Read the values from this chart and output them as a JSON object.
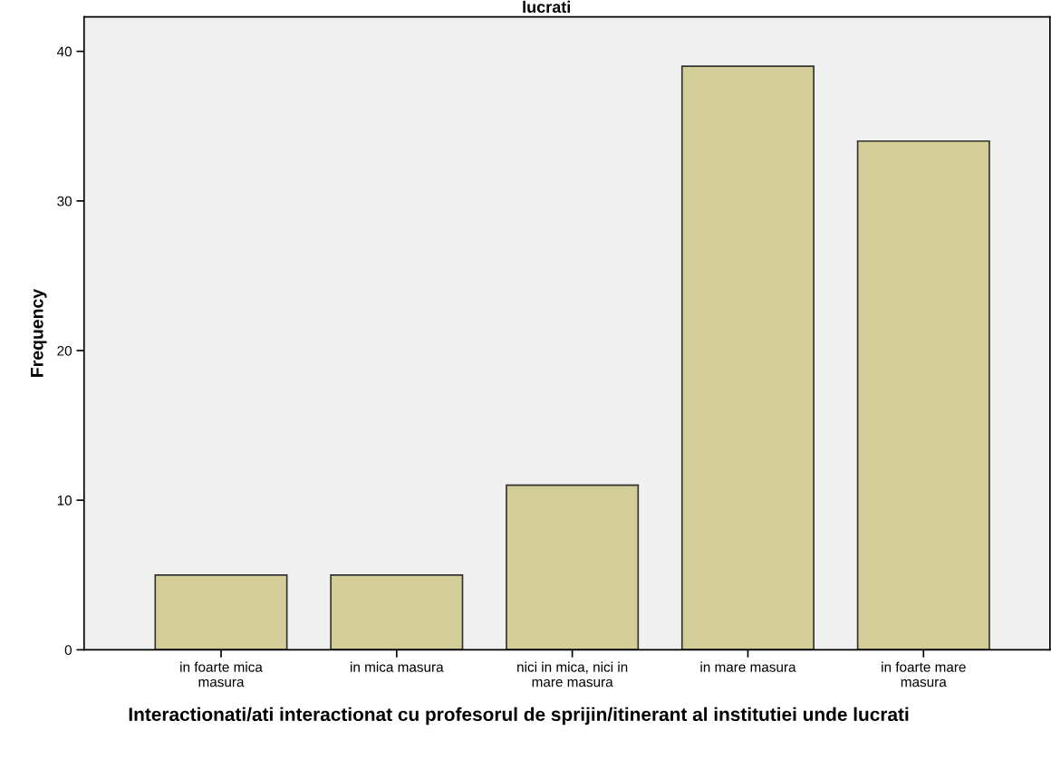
{
  "chart_data": {
    "type": "bar",
    "title": "lucrati",
    "xlabel": "Interactionati/ati interactionat cu profesorul de sprijin/itinerant al institutiei unde lucrati",
    "ylabel": "Frequency",
    "categories": [
      "in foarte mica\nmasura",
      "in mica masura",
      "nici in mica, nici in\nmare masura",
      "in mare masura",
      "in foarte mare\nmasura"
    ],
    "values": [
      5,
      5,
      11,
      39,
      34
    ],
    "color": "#d3ce97",
    "ylim": [
      0,
      42.3
    ],
    "yticks": [
      0,
      10,
      20,
      30,
      40
    ],
    "grid": false
  }
}
